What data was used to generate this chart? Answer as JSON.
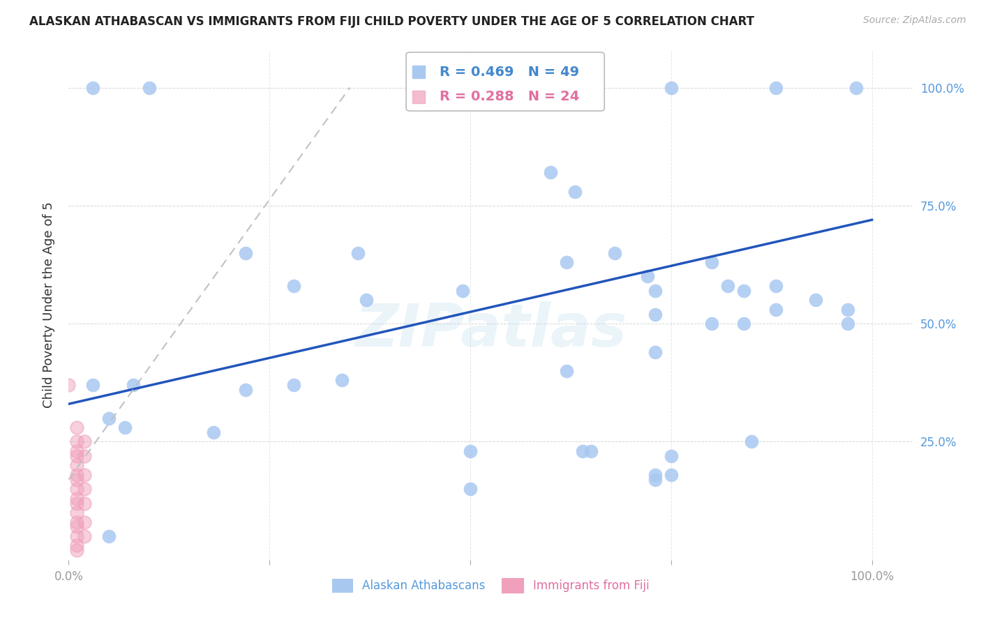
{
  "title": "ALASKAN ATHABASCAN VS IMMIGRANTS FROM FIJI CHILD POVERTY UNDER THE AGE OF 5 CORRELATION CHART",
  "source": "Source: ZipAtlas.com",
  "ylabel": "Child Poverty Under the Age of 5",
  "watermark": "ZIPatlas",
  "blue_r": 0.469,
  "blue_n": 49,
  "pink_r": 0.288,
  "pink_n": 24,
  "blue_color": "#A8C8F0",
  "pink_color": "#F0A0BC",
  "trend_blue_color": "#2255BB",
  "trend_pink_color": "#C0C0C8",
  "blue_points": [
    [
      0.03,
      1.0
    ],
    [
      0.1,
      1.0
    ],
    [
      0.6,
      1.0
    ],
    [
      0.61,
      1.0
    ],
    [
      0.75,
      1.0
    ],
    [
      0.88,
      1.0
    ],
    [
      0.98,
      1.0
    ],
    [
      0.6,
      0.82
    ],
    [
      0.63,
      0.78
    ],
    [
      0.22,
      0.65
    ],
    [
      0.36,
      0.65
    ],
    [
      0.28,
      0.58
    ],
    [
      0.37,
      0.55
    ],
    [
      0.49,
      0.57
    ],
    [
      0.62,
      0.63
    ],
    [
      0.68,
      0.65
    ],
    [
      0.72,
      0.6
    ],
    [
      0.73,
      0.57
    ],
    [
      0.8,
      0.63
    ],
    [
      0.82,
      0.58
    ],
    [
      0.84,
      0.57
    ],
    [
      0.88,
      0.58
    ],
    [
      0.93,
      0.55
    ],
    [
      0.97,
      0.53
    ],
    [
      0.73,
      0.52
    ],
    [
      0.8,
      0.5
    ],
    [
      0.84,
      0.5
    ],
    [
      0.88,
      0.53
    ],
    [
      0.97,
      0.5
    ],
    [
      0.73,
      0.44
    ],
    [
      0.03,
      0.37
    ],
    [
      0.08,
      0.37
    ],
    [
      0.22,
      0.36
    ],
    [
      0.28,
      0.37
    ],
    [
      0.34,
      0.38
    ],
    [
      0.62,
      0.4
    ],
    [
      0.05,
      0.3
    ],
    [
      0.07,
      0.28
    ],
    [
      0.18,
      0.27
    ],
    [
      0.5,
      0.23
    ],
    [
      0.64,
      0.23
    ],
    [
      0.65,
      0.23
    ],
    [
      0.75,
      0.22
    ],
    [
      0.85,
      0.25
    ],
    [
      0.73,
      0.18
    ],
    [
      0.75,
      0.18
    ],
    [
      0.5,
      0.15
    ],
    [
      0.73,
      0.17
    ],
    [
      0.05,
      0.05
    ]
  ],
  "pink_points": [
    [
      0.0,
      0.37
    ],
    [
      0.01,
      0.28
    ],
    [
      0.01,
      0.25
    ],
    [
      0.01,
      0.23
    ],
    [
      0.01,
      0.22
    ],
    [
      0.01,
      0.2
    ],
    [
      0.01,
      0.18
    ],
    [
      0.01,
      0.17
    ],
    [
      0.01,
      0.15
    ],
    [
      0.01,
      0.13
    ],
    [
      0.01,
      0.12
    ],
    [
      0.01,
      0.1
    ],
    [
      0.01,
      0.08
    ],
    [
      0.01,
      0.07
    ],
    [
      0.01,
      0.05
    ],
    [
      0.01,
      0.03
    ],
    [
      0.01,
      0.02
    ],
    [
      0.02,
      0.25
    ],
    [
      0.02,
      0.22
    ],
    [
      0.02,
      0.18
    ],
    [
      0.02,
      0.15
    ],
    [
      0.02,
      0.12
    ],
    [
      0.02,
      0.08
    ],
    [
      0.02,
      0.05
    ]
  ],
  "blue_trend_x0": 0.0,
  "blue_trend_y0": 0.33,
  "blue_trend_x1": 1.0,
  "blue_trend_y1": 0.72,
  "pink_trend_x0": 0.0,
  "pink_trend_y0": 0.17,
  "pink_trend_x1": 0.35,
  "pink_trend_y1": 1.0,
  "xlim": [
    0.0,
    1.05
  ],
  "ylim": [
    0.0,
    1.08
  ],
  "xticks": [
    0.0,
    0.25,
    0.5,
    0.75,
    1.0
  ],
  "xtick_labels": [
    "0.0%",
    "",
    "",
    "",
    "100.0%"
  ],
  "ytick_positions": [
    0.0,
    0.25,
    0.5,
    0.75,
    1.0
  ],
  "ytick_labels_right": [
    "",
    "25.0%",
    "50.0%",
    "75.0%",
    "100.0%"
  ],
  "legend_blue_label": "Alaskan Athabascans",
  "legend_pink_label": "Immigrants from Fiji",
  "background_color": "#FFFFFF",
  "grid_color": "#CCCCCC"
}
